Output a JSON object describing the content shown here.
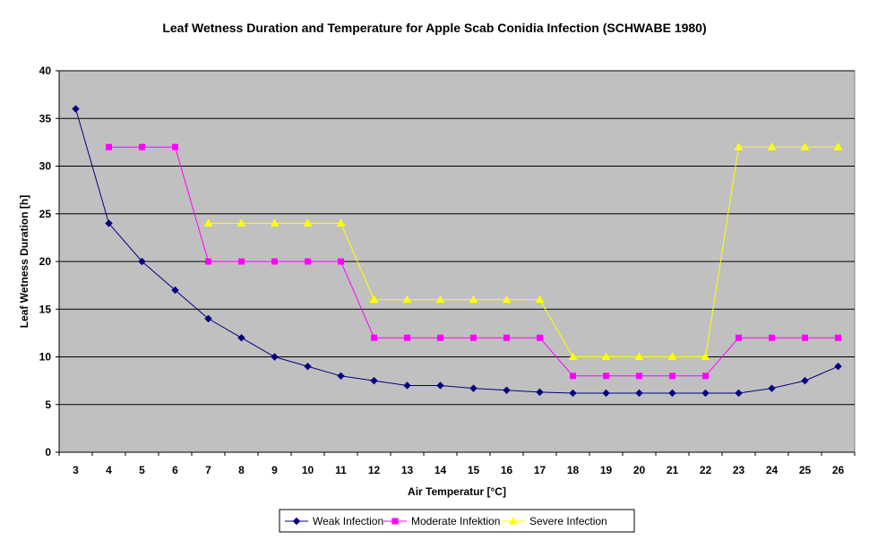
{
  "chart_data": {
    "type": "line",
    "title": "Leaf Wetness Duration and Temperature for Apple Scab Conidia Infection (SCHWABE 1980)",
    "xlabel": "Air Temperatur [°C]",
    "ylabel": "Leaf Wetness Duration [h]",
    "ylim": [
      0,
      40
    ],
    "yticks": [
      "0",
      "5",
      "10",
      "15",
      "20",
      "25",
      "30",
      "35",
      "40"
    ],
    "categories": [
      "3",
      "4",
      "5",
      "6",
      "7",
      "8",
      "9",
      "10",
      "11",
      "12",
      "13",
      "14",
      "15",
      "16",
      "17",
      "18",
      "19",
      "20",
      "21",
      "22",
      "23",
      "24",
      "25",
      "26"
    ],
    "grid": "horizontal",
    "legend_position": "bottom",
    "plot_background": "#c0c0c0",
    "series": [
      {
        "name": "Weak Infection",
        "color": "#000080",
        "marker": "diamond",
        "values": [
          36,
          24,
          20,
          17,
          14,
          12,
          10,
          9,
          8,
          7.5,
          7,
          7,
          6.7,
          6.5,
          6.3,
          6.2,
          6.2,
          6.2,
          6.2,
          6.2,
          6.2,
          6.7,
          7.5,
          9
        ]
      },
      {
        "name": "Moderate Infektion",
        "color": "#ff00ff",
        "marker": "square",
        "values": [
          null,
          32,
          32,
          32,
          20,
          20,
          20,
          20,
          20,
          12,
          12,
          12,
          12,
          12,
          12,
          8,
          8,
          8,
          8,
          8,
          12,
          12,
          12,
          12
        ]
      },
      {
        "name": "Severe Infection",
        "color": "#ffff00",
        "marker": "triangle",
        "values": [
          null,
          null,
          null,
          null,
          24,
          24,
          24,
          24,
          24,
          16,
          16,
          16,
          16,
          16,
          16,
          10,
          10,
          10,
          10,
          10,
          32,
          32,
          32,
          32
        ]
      }
    ]
  }
}
